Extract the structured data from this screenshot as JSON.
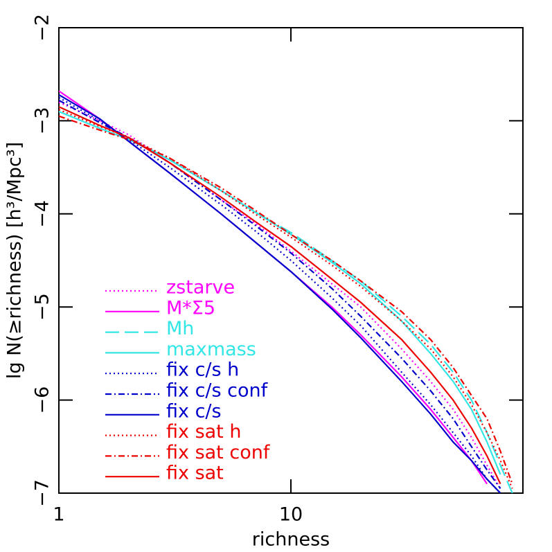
{
  "chart_data": {
    "type": "line",
    "xlabel": "richness",
    "ylabel": "lg N(≥richness)  [h³/Mpc³]",
    "xscale": "log",
    "xlim": [
      1,
      100
    ],
    "ylim": [
      -7,
      -2
    ],
    "xticks": [
      1,
      10
    ],
    "yticks": [
      {
        "value": -2,
        "label": "−2"
      },
      {
        "value": -3,
        "label": "−3"
      },
      {
        "value": -4,
        "label": "−4"
      },
      {
        "value": -5,
        "label": "−5"
      },
      {
        "value": -6,
        "label": "−6"
      },
      {
        "value": -7,
        "label": "−7"
      }
    ],
    "legend": "lower left",
    "x": [
      1,
      1.5,
      2,
      3,
      5,
      7,
      10,
      15,
      20,
      30,
      40,
      50,
      60,
      70,
      80,
      90
    ],
    "series": [
      {
        "name": "zstarve",
        "color": "#ff00ff",
        "dash": "dotted",
        "values": [
          -2.8,
          -3.0,
          -3.15,
          -3.45,
          -3.85,
          -4.1,
          -4.4,
          -4.75,
          -5.0,
          -5.45,
          -5.8,
          -6.1,
          -6.4,
          -6.7,
          -6.95,
          null
        ]
      },
      {
        "name": "M*Σ5",
        "color": "#ff00ff",
        "dash": "solid",
        "values": [
          -2.68,
          -2.98,
          -3.22,
          -3.56,
          -4.0,
          -4.3,
          -4.62,
          -5.0,
          -5.3,
          -5.75,
          -6.1,
          -6.4,
          -6.65,
          -6.9,
          null,
          null
        ]
      },
      {
        "name": "Mh",
        "color": "#33e6e6",
        "dash": "dashed",
        "values": [
          -2.85,
          -3.05,
          -3.18,
          -3.42,
          -3.75,
          -3.98,
          -4.2,
          -4.5,
          -4.72,
          -5.1,
          -5.4,
          -5.7,
          -6.0,
          -6.35,
          -6.7,
          -7.0
        ]
      },
      {
        "name": "maxmass",
        "color": "#33e6e6",
        "dash": "solid",
        "values": [
          -2.9,
          -3.08,
          -3.2,
          -3.42,
          -3.75,
          -3.98,
          -4.22,
          -4.52,
          -4.75,
          -5.15,
          -5.5,
          -5.8,
          -6.1,
          -6.45,
          -6.8,
          null
        ]
      },
      {
        "name": "fix c/s h",
        "color": "#0000cc",
        "dash": "dotted",
        "values": [
          -2.75,
          -3.0,
          -3.2,
          -3.5,
          -3.9,
          -4.18,
          -4.5,
          -4.9,
          -5.2,
          -5.7,
          -6.05,
          -6.35,
          -6.6,
          -6.85,
          -7.0,
          null
        ]
      },
      {
        "name": "fix c/s conf",
        "color": "#0000cc",
        "dash": "dashdot",
        "values": [
          -2.78,
          -3.02,
          -3.18,
          -3.45,
          -3.85,
          -4.12,
          -4.42,
          -4.8,
          -5.1,
          -5.55,
          -5.9,
          -6.2,
          -6.5,
          -6.75,
          -6.95,
          null
        ]
      },
      {
        "name": "fix c/s",
        "color": "#0000cc",
        "dash": "solid",
        "values": [
          -2.72,
          -2.98,
          -3.22,
          -3.56,
          -4.0,
          -4.3,
          -4.62,
          -5.02,
          -5.33,
          -5.8,
          -6.15,
          -6.45,
          -6.65,
          -6.85,
          -7.0,
          null
        ]
      },
      {
        "name": "fix sat h",
        "color": "#ee0000",
        "dash": "dotted",
        "values": [
          -2.88,
          -3.06,
          -3.18,
          -3.4,
          -3.75,
          -4.0,
          -4.25,
          -4.55,
          -4.78,
          -5.15,
          -5.45,
          -5.75,
          -6.05,
          -6.35,
          -6.65,
          -6.95
        ]
      },
      {
        "name": "fix sat conf",
        "color": "#ee0000",
        "dash": "dashdot",
        "values": [
          -2.95,
          -3.1,
          -3.2,
          -3.4,
          -3.72,
          -3.96,
          -4.22,
          -4.5,
          -4.72,
          -5.05,
          -5.35,
          -5.65,
          -5.95,
          -6.2,
          -6.55,
          -6.9
        ]
      },
      {
        "name": "fix sat",
        "color": "#ee0000",
        "dash": "solid",
        "values": [
          -2.85,
          -3.05,
          -3.18,
          -3.45,
          -3.82,
          -4.08,
          -4.35,
          -4.7,
          -4.95,
          -5.35,
          -5.7,
          -6.0,
          -6.3,
          -6.6,
          -6.9,
          null
        ]
      }
    ]
  }
}
